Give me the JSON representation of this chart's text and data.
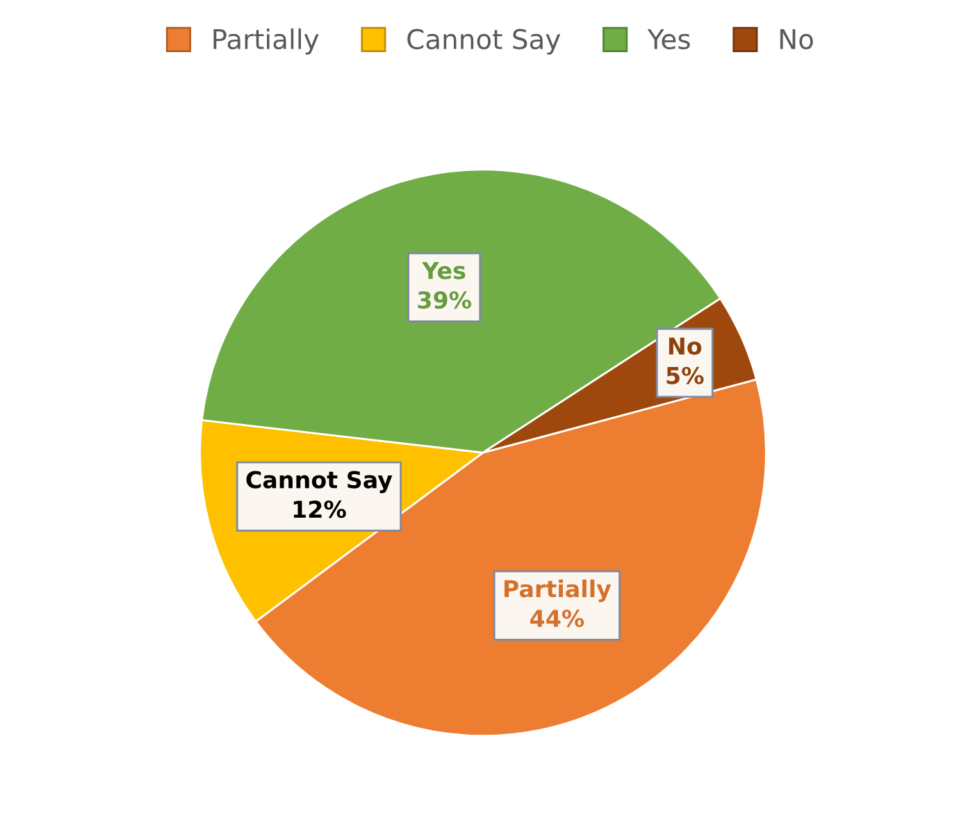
{
  "chart_data": {
    "type": "pie",
    "categories": [
      "Partially",
      "Cannot Say",
      "Yes",
      "No"
    ],
    "values": [
      44,
      12,
      39,
      5
    ],
    "value_labels": [
      "44%",
      "12%",
      "39%",
      "5%"
    ],
    "colors": [
      "#ed7d31",
      "#ffc000",
      "#70ad47",
      "#9e480e"
    ],
    "legend": "top"
  }
}
